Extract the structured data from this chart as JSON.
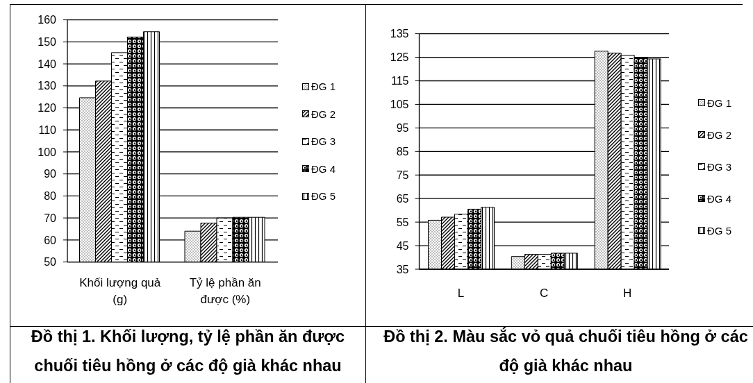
{
  "chart_data": [
    {
      "type": "bar",
      "categories": [
        "Khối lượng quả (g)",
        "Tỷ lệ phần ăn được (%)"
      ],
      "series": [
        {
          "name": "ĐG 1",
          "color": "#000000",
          "values": [
            124.6,
            64.0
          ]
        },
        {
          "name": "ĐG 2",
          "color": "#000000",
          "values": [
            132.2,
            67.7
          ]
        },
        {
          "name": "ĐG 3",
          "color": "#000000",
          "values": [
            145.1,
            70.0
          ]
        },
        {
          "name": "ĐG 4",
          "color": "#000000",
          "values": [
            152.2,
            70.3
          ]
        },
        {
          "name": "ĐG 5",
          "color": "#000000",
          "values": [
            154.6,
            70.3
          ]
        }
      ],
      "ylim": [
        50,
        160
      ],
      "yticks": [
        50,
        60,
        70,
        80,
        90,
        100,
        110,
        120,
        130,
        140,
        150,
        160
      ],
      "grid": "y",
      "legend": "right",
      "annotations": [
        "Đồ thị 1. Khối lượng, tỷ lệ phần ăn được chuối tiêu hồng ở các độ già khác nhau"
      ]
    },
    {
      "type": "bar",
      "categories": [
        "L",
        "C",
        "H"
      ],
      "series": [
        {
          "name": "ĐG 1",
          "color": "#000000",
          "values": [
            55.8,
            40.4,
            127.6
          ]
        },
        {
          "name": "ĐG 2",
          "color": "#000000",
          "values": [
            57.1,
            41.3,
            126.8
          ]
        },
        {
          "name": "ĐG 3",
          "color": "#000000",
          "values": [
            58.4,
            41.3,
            125.9
          ]
        },
        {
          "name": "ĐG 4",
          "color": "#000000",
          "values": [
            60.5,
            41.8,
            125.0
          ]
        },
        {
          "name": "ĐG 5",
          "color": "#000000",
          "values": [
            61.3,
            41.8,
            124.3
          ]
        }
      ],
      "ylim": [
        35,
        135
      ],
      "yticks": [
        35,
        45,
        55,
        65,
        75,
        85,
        95,
        105,
        115,
        125,
        135
      ],
      "grid": "y",
      "legend": "right",
      "annotations": [
        "Đồ thị 2. Màu sắc vỏ quả chuối tiêu hồng ở các độ già khác nhau"
      ]
    }
  ]
}
